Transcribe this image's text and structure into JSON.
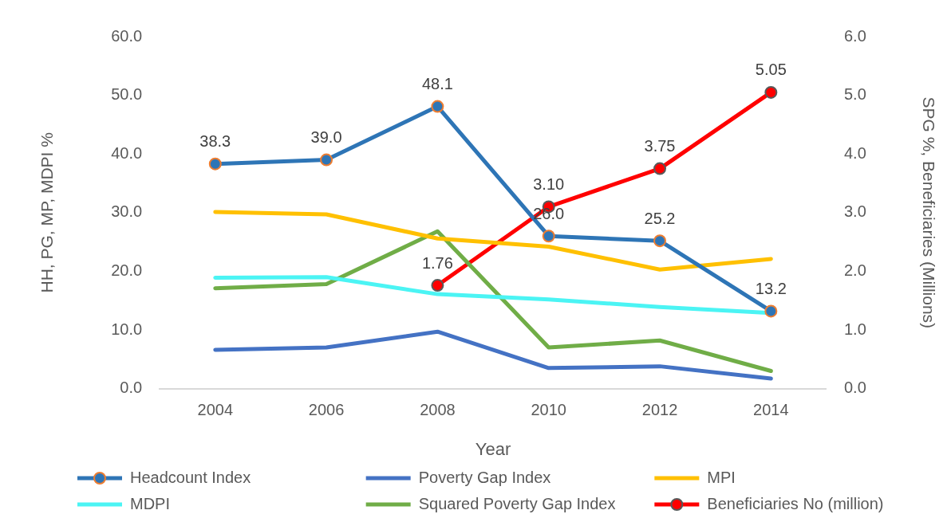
{
  "chart_data": {
    "type": "line",
    "xlabel": "Year",
    "ylabel": "HH, PG, MP, MDPI %",
    "y2label": "SPG %, Beneficiaries (Millions)",
    "categories": [
      "2004",
      "2006",
      "2008",
      "2010",
      "2012",
      "2014"
    ],
    "series": [
      {
        "name": "Headcount Index",
        "color": "#2e75b6",
        "marker": "circle",
        "values": [
          38.3,
          39.0,
          48.1,
          26.0,
          25.2,
          13.2
        ],
        "value_labels": [
          "38.3",
          "39.0",
          "48.1",
          "26.0",
          "25.2",
          "13.2"
        ]
      },
      {
        "name": "Poverty Gap Index",
        "color": "#4472c4",
        "values": [
          6.6,
          7.0,
          9.7,
          3.5,
          3.8,
          1.7
        ]
      },
      {
        "name": "MPI",
        "color": "#ffc000",
        "values": [
          30.1,
          29.7,
          25.6,
          24.2,
          20.3,
          22.1
        ]
      },
      {
        "name": "MDPI",
        "color": "#4bf4f4",
        "values": [
          18.9,
          19.0,
          16.1,
          15.2,
          13.9,
          12.9
        ]
      },
      {
        "name": "Squared Poverty Gap Index",
        "color": "#70ad47",
        "axis": "y2",
        "values": [
          1.71,
          1.78,
          2.68,
          0.7,
          0.82,
          0.3
        ]
      },
      {
        "name": "Beneficiaries No (million)",
        "color": "#ff0000",
        "axis": "y2",
        "marker": "circle",
        "values": [
          null,
          null,
          1.76,
          3.1,
          3.75,
          5.05
        ],
        "value_labels": [
          null,
          null,
          "1.76",
          "3.10",
          "3.75",
          "5.05"
        ]
      }
    ],
    "ylim": [
      0,
      60
    ],
    "yticks": [
      {
        "value": 0,
        "label": "0.0"
      },
      {
        "value": 10,
        "label": "10.0"
      },
      {
        "value": 20,
        "label": "20.0"
      },
      {
        "value": 30,
        "label": "30.0"
      },
      {
        "value": 40,
        "label": "40.0"
      },
      {
        "value": 50,
        "label": "50.0"
      },
      {
        "value": 60,
        "label": "60.0"
      }
    ],
    "y2lim": [
      0,
      6
    ],
    "y2ticks": [
      {
        "value": 0,
        "label": "0.0"
      },
      {
        "value": 1,
        "label": "1.0"
      },
      {
        "value": 2,
        "label": "2.0"
      },
      {
        "value": 3,
        "label": "3.0"
      },
      {
        "value": 4,
        "label": "4.0"
      },
      {
        "value": 5,
        "label": "5.0"
      },
      {
        "value": 6,
        "label": "6.0"
      }
    ],
    "grid": false,
    "legend": "bottom",
    "marker": "none"
  }
}
